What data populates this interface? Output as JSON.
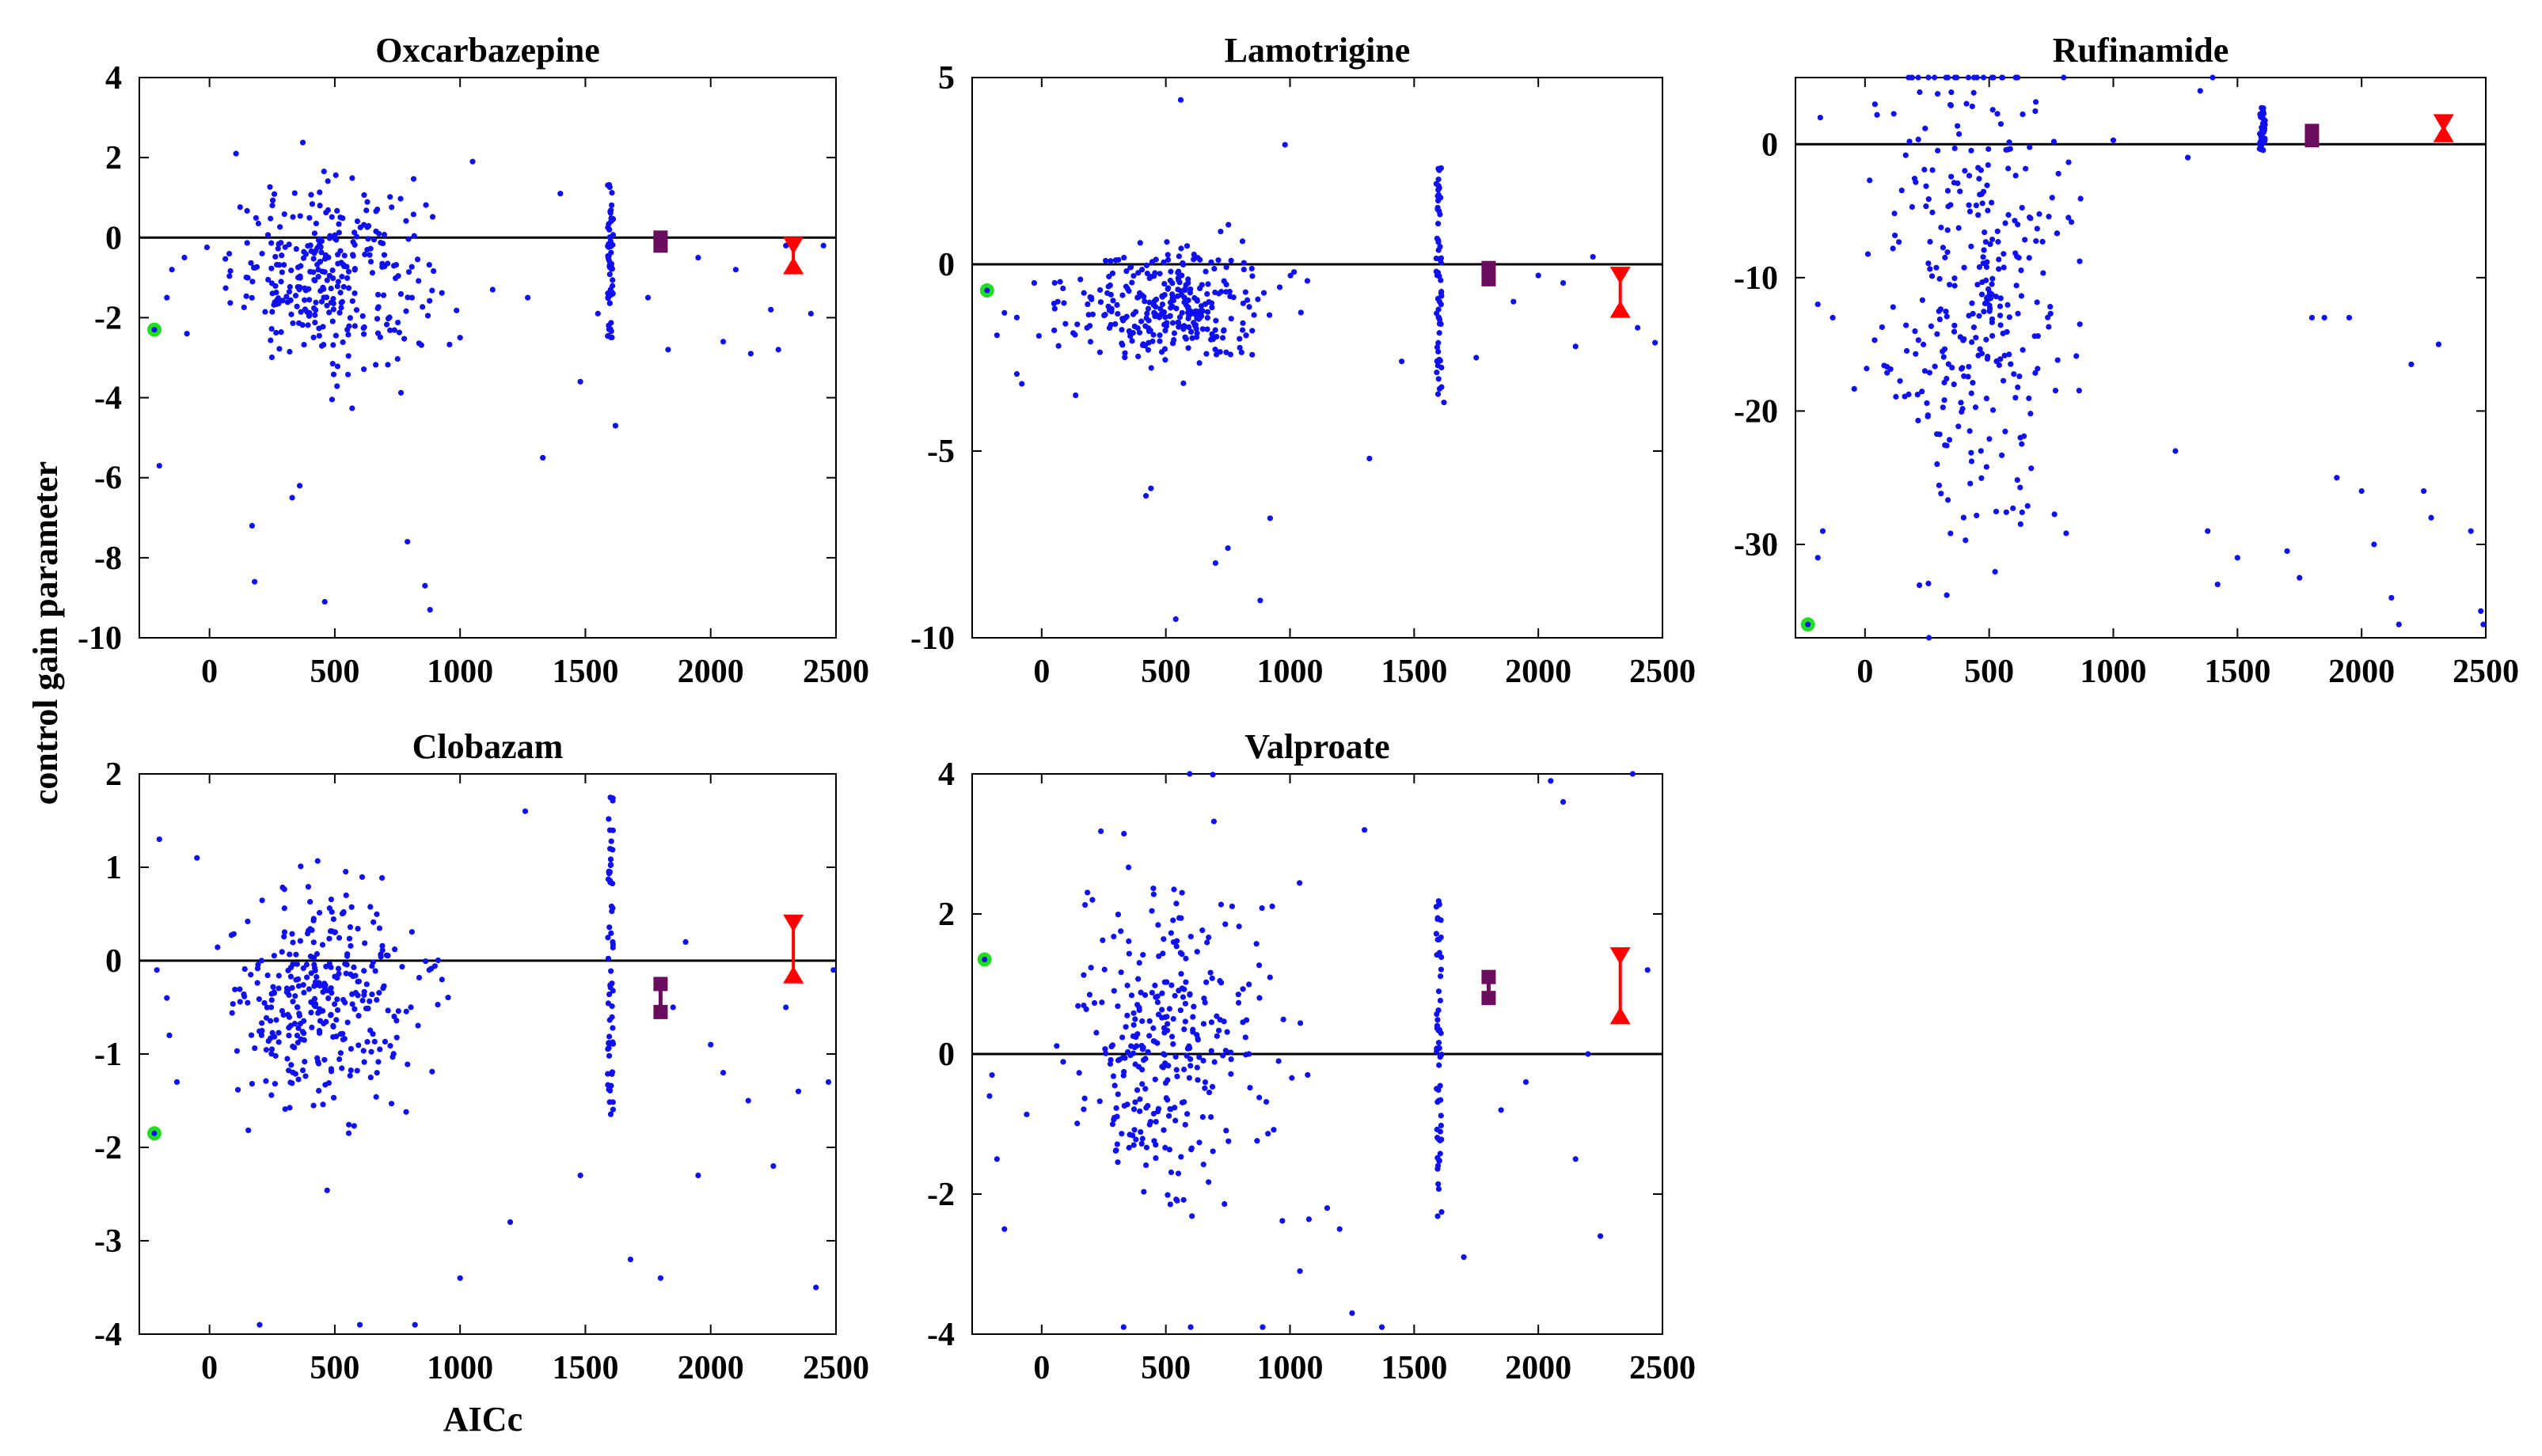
{
  "figure": {
    "ylabel": "control gain parameter",
    "xlabel": "AICc"
  },
  "colors": {
    "scatter": "#1010ee",
    "marker_green": "#22dd22",
    "marker_purple": "#6a0d5e",
    "marker_red": "#ff0000",
    "zero_line": "#000000"
  },
  "chart_data": [
    {
      "type": "scatter",
      "title": "Oxcarbazepine",
      "xlim": [
        -280,
        2500
      ],
      "ylim": [
        -10,
        4
      ],
      "xticks": [
        0,
        500,
        1000,
        1500,
        2000,
        2500
      ],
      "yticks": [
        4,
        2,
        0,
        -2,
        -4,
        -6,
        -8,
        -10
      ],
      "zero_line": 0,
      "green_point": {
        "x": -220,
        "y": -2.3
      },
      "purple_interval": {
        "x": 1800,
        "lo": -0.2,
        "hi": 0.0
      },
      "red_interval": {
        "x": 2330,
        "lo": -0.7,
        "hi": -0.2
      },
      "cluster": {
        "center": 480,
        "spread": 260,
        "mean": -0.9,
        "sd": 1.1,
        "n": 320
      },
      "outliers": [
        [
          170,
          -7.2
        ],
        [
          180,
          -8.6
        ],
        [
          330,
          -6.5
        ],
        [
          360,
          -6.2
        ],
        [
          460,
          -9.1
        ],
        [
          790,
          -7.6
        ],
        [
          860,
          -8.7
        ],
        [
          880,
          -9.3
        ],
        [
          1000,
          -2.5
        ],
        [
          1050,
          1.9
        ],
        [
          1130,
          -1.3
        ],
        [
          1270,
          -1.5
        ],
        [
          1330,
          -5.5
        ],
        [
          1400,
          1.1
        ],
        [
          1480,
          -3.6
        ],
        [
          1550,
          -1.9
        ],
        [
          1620,
          -4.7
        ],
        [
          1750,
          -1.5
        ],
        [
          1830,
          -2.8
        ],
        [
          1950,
          -0.5
        ],
        [
          2050,
          -2.6
        ],
        [
          2100,
          -0.8
        ],
        [
          2160,
          -2.9
        ],
        [
          2240,
          -1.8
        ],
        [
          2270,
          -2.8
        ],
        [
          2300,
          -0.2
        ],
        [
          2400,
          -1.9
        ],
        [
          2450,
          -0.2
        ],
        [
          -200,
          -5.7
        ],
        [
          -170,
          -1.5
        ],
        [
          -150,
          -0.8
        ],
        [
          -90,
          -2.4
        ]
      ],
      "column": {
        "x": 1600,
        "min": -2.6,
        "max": 1.4,
        "n": 60
      }
    },
    {
      "type": "scatter",
      "title": "Lamotrigine",
      "xlim": [
        -280,
        2500
      ],
      "ylim": [
        -10,
        5
      ],
      "xticks": [
        0,
        500,
        1000,
        1500,
        2000,
        2500
      ],
      "yticks": [
        5,
        0,
        -5,
        -10
      ],
      "zero_line": 0,
      "green_point": {
        "x": -220,
        "y": -0.7
      },
      "purple_interval": {
        "x": 1800,
        "lo": -0.4,
        "hi": -0.1
      },
      "red_interval": {
        "x": 2330,
        "lo": -1.2,
        "hi": -0.3
      },
      "cluster": {
        "center": 500,
        "spread": 270,
        "mean": -1.1,
        "sd": 0.8,
        "n": 320
      },
      "outliers": [
        [
          560,
          4.4
        ],
        [
          980,
          3.2
        ],
        [
          440,
          -6.0
        ],
        [
          420,
          -6.2
        ],
        [
          540,
          -9.5
        ],
        [
          700,
          -8.0
        ],
        [
          750,
          -7.6
        ],
        [
          880,
          -9.0
        ],
        [
          920,
          -6.8
        ],
        [
          1320,
          -5.2
        ],
        [
          1450,
          -2.6
        ],
        [
          1620,
          -3.7
        ],
        [
          1750,
          -2.5
        ],
        [
          1900,
          -1.0
        ],
        [
          2000,
          -0.3
        ],
        [
          2100,
          -0.5
        ],
        [
          2150,
          -2.2
        ],
        [
          2220,
          0.2
        ],
        [
          2400,
          -1.7
        ],
        [
          2470,
          -2.1
        ],
        [
          -180,
          -1.9
        ],
        [
          -150,
          -1.3
        ],
        [
          -80,
          -3.2
        ],
        [
          -30,
          -0.5
        ]
      ],
      "column": {
        "x": 1600,
        "min": -3.8,
        "max": 2.7,
        "n": 60
      }
    },
    {
      "type": "scatter",
      "title": "Rufinamide",
      "xlim": [
        -280,
        2500
      ],
      "ylim": [
        -37,
        5
      ],
      "xticks": [
        0,
        500,
        1000,
        1500,
        2000,
        2500
      ],
      "yticks": [
        0,
        -10,
        -20,
        -30
      ],
      "zero_line": 0,
      "green_point": {
        "x": -230,
        "y": -36
      },
      "purple_interval": {
        "x": 1800,
        "lo": 0.3,
        "hi": 1.0
      },
      "red_interval": {
        "x": 2330,
        "lo": 0.8,
        "hi": 1.6
      },
      "cluster": {
        "center": 450,
        "spread": 250,
        "mean": -11,
        "sd": 10,
        "n": 340
      },
      "outliers": [
        [
          -180,
          2.0
        ],
        [
          -190,
          -12
        ],
        [
          -170,
          -29
        ],
        [
          -190,
          -31
        ],
        [
          -130,
          -13
        ],
        [
          40,
          3.0
        ],
        [
          1000,
          0.3
        ],
        [
          1350,
          4.0
        ],
        [
          1400,
          5.0
        ],
        [
          1300,
          -1
        ],
        [
          1250,
          -23
        ],
        [
          1380,
          -29
        ],
        [
          1420,
          -33
        ],
        [
          1500,
          -31
        ],
        [
          1700,
          -30.5
        ],
        [
          1750,
          -32.5
        ],
        [
          1800,
          -13
        ],
        [
          1850,
          -13
        ],
        [
          1900,
          -25
        ],
        [
          1950,
          -13
        ],
        [
          2000,
          -26
        ],
        [
          2050,
          -30
        ],
        [
          2120,
          -34
        ],
        [
          2150,
          -36
        ],
        [
          2200,
          -16.5
        ],
        [
          2250,
          -26
        ],
        [
          2280,
          -28
        ],
        [
          2310,
          -15
        ],
        [
          2440,
          -29
        ],
        [
          2480,
          -35
        ],
        [
          2490,
          -36
        ]
      ],
      "column": {
        "x": 1600,
        "min": -0.5,
        "max": 2.8,
        "n": 60
      }
    },
    {
      "type": "scatter",
      "title": "Clobazam",
      "xlim": [
        -280,
        2500
      ],
      "ylim": [
        -4,
        2
      ],
      "xticks": [
        0,
        500,
        1000,
        1500,
        2000,
        2500
      ],
      "yticks": [
        2,
        1,
        0,
        -1,
        -2,
        -3,
        -4
      ],
      "zero_line": 0,
      "green_point": {
        "x": -220,
        "y": -1.85
      },
      "purple_interval": {
        "x": 1800,
        "lo": -0.55,
        "hi": -0.25
      },
      "red_interval": {
        "x": 2330,
        "lo": -0.15,
        "hi": 0.4
      },
      "cluster": {
        "center": 450,
        "spread": 240,
        "mean": -0.45,
        "sd": 0.6,
        "n": 330
      },
      "outliers": [
        [
          200,
          -3.9
        ],
        [
          600,
          -3.9
        ],
        [
          820,
          -3.9
        ],
        [
          1000,
          -3.4
        ],
        [
          1200,
          -2.8
        ],
        [
          1260,
          1.6
        ],
        [
          1480,
          -2.3
        ],
        [
          1680,
          -3.2
        ],
        [
          1800,
          -3.4
        ],
        [
          1850,
          -0.5
        ],
        [
          1900,
          0.2
        ],
        [
          1950,
          -2.3
        ],
        [
          2000,
          -0.9
        ],
        [
          2050,
          -1.2
        ],
        [
          2150,
          -1.5
        ],
        [
          2250,
          -2.2
        ],
        [
          2300,
          -0.5
        ],
        [
          2350,
          -1.4
        ],
        [
          2420,
          -3.5
        ],
        [
          2470,
          -1.3
        ],
        [
          2490,
          -0.1
        ],
        [
          -200,
          1.3
        ],
        [
          -170,
          -0.4
        ],
        [
          -160,
          -0.8
        ],
        [
          -50,
          1.1
        ],
        [
          -210,
          -0.1
        ],
        [
          -130,
          -1.3
        ]
      ],
      "column": {
        "x": 1600,
        "min": -1.7,
        "max": 1.8,
        "n": 60
      }
    },
    {
      "type": "scatter",
      "title": "Valproate",
      "xlim": [
        -280,
        2500
      ],
      "ylim": [
        -4,
        4
      ],
      "xticks": [
        0,
        500,
        1000,
        1500,
        2000,
        2500
      ],
      "yticks": [
        4,
        2,
        0,
        -2,
        -4
      ],
      "zero_line": 0,
      "green_point": {
        "x": -230,
        "y": 1.35
      },
      "purple_interval": {
        "x": 1800,
        "lo": 0.8,
        "hi": 1.1
      },
      "red_interval": {
        "x": 2330,
        "lo": 0.55,
        "hi": 1.4
      },
      "cluster": {
        "center": 500,
        "spread": 260,
        "mean": 0.2,
        "sd": 1.2,
        "n": 320
      },
      "outliers": [
        [
          330,
          -3.9
        ],
        [
          600,
          -3.9
        ],
        [
          890,
          -3.9
        ],
        [
          1040,
          -3.1
        ],
        [
          1200,
          -2.5
        ],
        [
          1250,
          -3.7
        ],
        [
          1150,
          -2.2
        ],
        [
          1300,
          3.2
        ],
        [
          1370,
          -3.9
        ],
        [
          1700,
          -2.9
        ],
        [
          1850,
          -0.8
        ],
        [
          1950,
          -0.4
        ],
        [
          2050,
          3.9
        ],
        [
          2100,
          3.6
        ],
        [
          2150,
          -1.5
        ],
        [
          2200,
          0.0
        ],
        [
          2250,
          -2.6
        ],
        [
          2380,
          4.0
        ],
        [
          2440,
          1.2
        ],
        [
          -200,
          -0.3
        ],
        [
          -180,
          -1.5
        ],
        [
          -150,
          -2.5
        ],
        [
          -210,
          -0.6
        ]
      ],
      "column": {
        "x": 1600,
        "min": -2.5,
        "max": 2.3,
        "n": 60
      }
    }
  ]
}
